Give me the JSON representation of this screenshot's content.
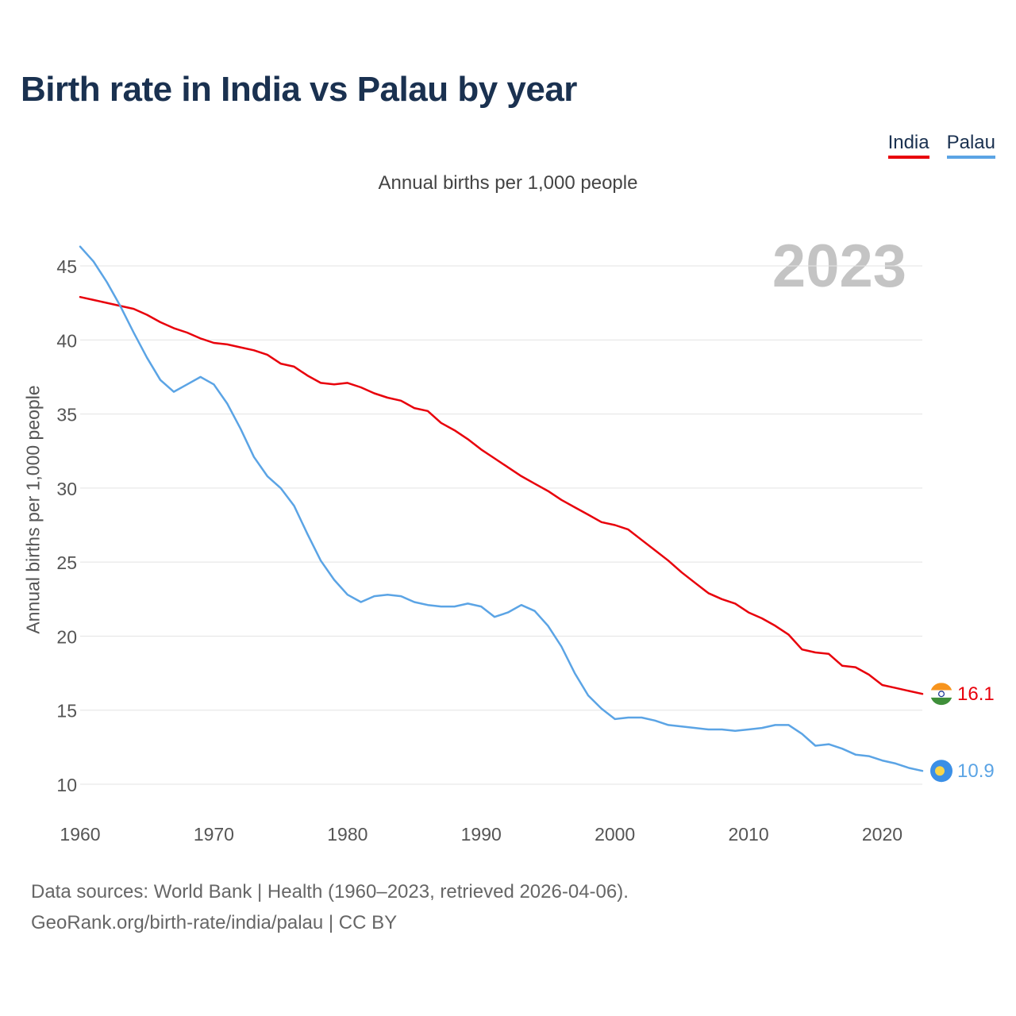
{
  "title": "Birth rate in India vs Palau by year",
  "subtitle": "Annual births per 1,000 people",
  "legend": [
    {
      "name": "India",
      "color": "#e8000b"
    },
    {
      "name": "Palau",
      "color": "#5ba4e5"
    }
  ],
  "year_label": "2023",
  "footer": {
    "line1": "Data sources: World Bank | Health (1960–2023, retrieved 2026-04-06).",
    "line2": "GeoRank.org/birth-rate/india/palau | CC BY"
  },
  "chart_data": {
    "type": "line",
    "title": "Birth rate in India vs Palau by year",
    "ylabel": "Annual births per 1,000 people",
    "xlabel": "",
    "xlim": [
      1960,
      2023
    ],
    "ylim": [
      8.5,
      47
    ],
    "y_ticks": [
      10,
      15,
      20,
      25,
      30,
      35,
      40,
      45
    ],
    "x_ticks": [
      1960,
      1970,
      1980,
      1990,
      2000,
      2010,
      2020
    ],
    "grid": true,
    "legend_position": "top-right",
    "x": [
      1960,
      1961,
      1962,
      1963,
      1964,
      1965,
      1966,
      1967,
      1968,
      1969,
      1970,
      1971,
      1972,
      1973,
      1974,
      1975,
      1976,
      1977,
      1978,
      1979,
      1980,
      1981,
      1982,
      1983,
      1984,
      1985,
      1986,
      1987,
      1988,
      1989,
      1990,
      1991,
      1992,
      1993,
      1994,
      1995,
      1996,
      1997,
      1998,
      1999,
      2000,
      2001,
      2002,
      2003,
      2004,
      2005,
      2006,
      2007,
      2008,
      2009,
      2010,
      2011,
      2012,
      2013,
      2014,
      2015,
      2016,
      2017,
      2018,
      2019,
      2020,
      2021,
      2022,
      2023
    ],
    "series": [
      {
        "name": "India",
        "color": "#e8000b",
        "end_label": "16.1",
        "flag": "india-flag",
        "values": [
          42.9,
          42.7,
          42.5,
          42.3,
          42.1,
          41.7,
          41.2,
          40.8,
          40.5,
          40.1,
          39.8,
          39.7,
          39.5,
          39.3,
          39.0,
          38.4,
          38.2,
          37.6,
          37.1,
          37.0,
          37.1,
          36.8,
          36.4,
          36.1,
          35.9,
          35.4,
          35.2,
          34.4,
          33.9,
          33.3,
          32.6,
          32.0,
          31.4,
          30.8,
          30.3,
          29.8,
          29.2,
          28.7,
          28.2,
          27.7,
          27.5,
          27.2,
          26.5,
          25.8,
          25.1,
          24.3,
          23.6,
          22.9,
          22.5,
          22.2,
          21.6,
          21.2,
          20.7,
          20.1,
          19.1,
          18.9,
          18.8,
          18.0,
          17.9,
          17.4,
          16.7,
          16.5,
          16.3,
          16.1
        ]
      },
      {
        "name": "Palau",
        "color": "#5ba4e5",
        "end_label": "10.9",
        "flag": "palau-flag",
        "values": [
          46.3,
          45.3,
          43.9,
          42.3,
          40.5,
          38.8,
          37.3,
          36.5,
          37.0,
          37.5,
          37.0,
          35.7,
          34.0,
          32.1,
          30.8,
          30.0,
          28.8,
          26.9,
          25.1,
          23.8,
          22.8,
          22.3,
          22.7,
          22.8,
          22.7,
          22.3,
          22.1,
          22.0,
          22.0,
          22.2,
          22.0,
          21.3,
          21.6,
          22.1,
          21.7,
          20.7,
          19.3,
          17.5,
          16.0,
          15.1,
          14.4,
          14.5,
          14.5,
          14.3,
          14.0,
          13.9,
          13.8,
          13.7,
          13.7,
          13.6,
          13.7,
          13.8,
          14.0,
          14.0,
          13.4,
          12.6,
          12.7,
          12.4,
          12.0,
          11.9,
          11.6,
          11.4,
          11.1,
          10.9
        ]
      }
    ]
  }
}
